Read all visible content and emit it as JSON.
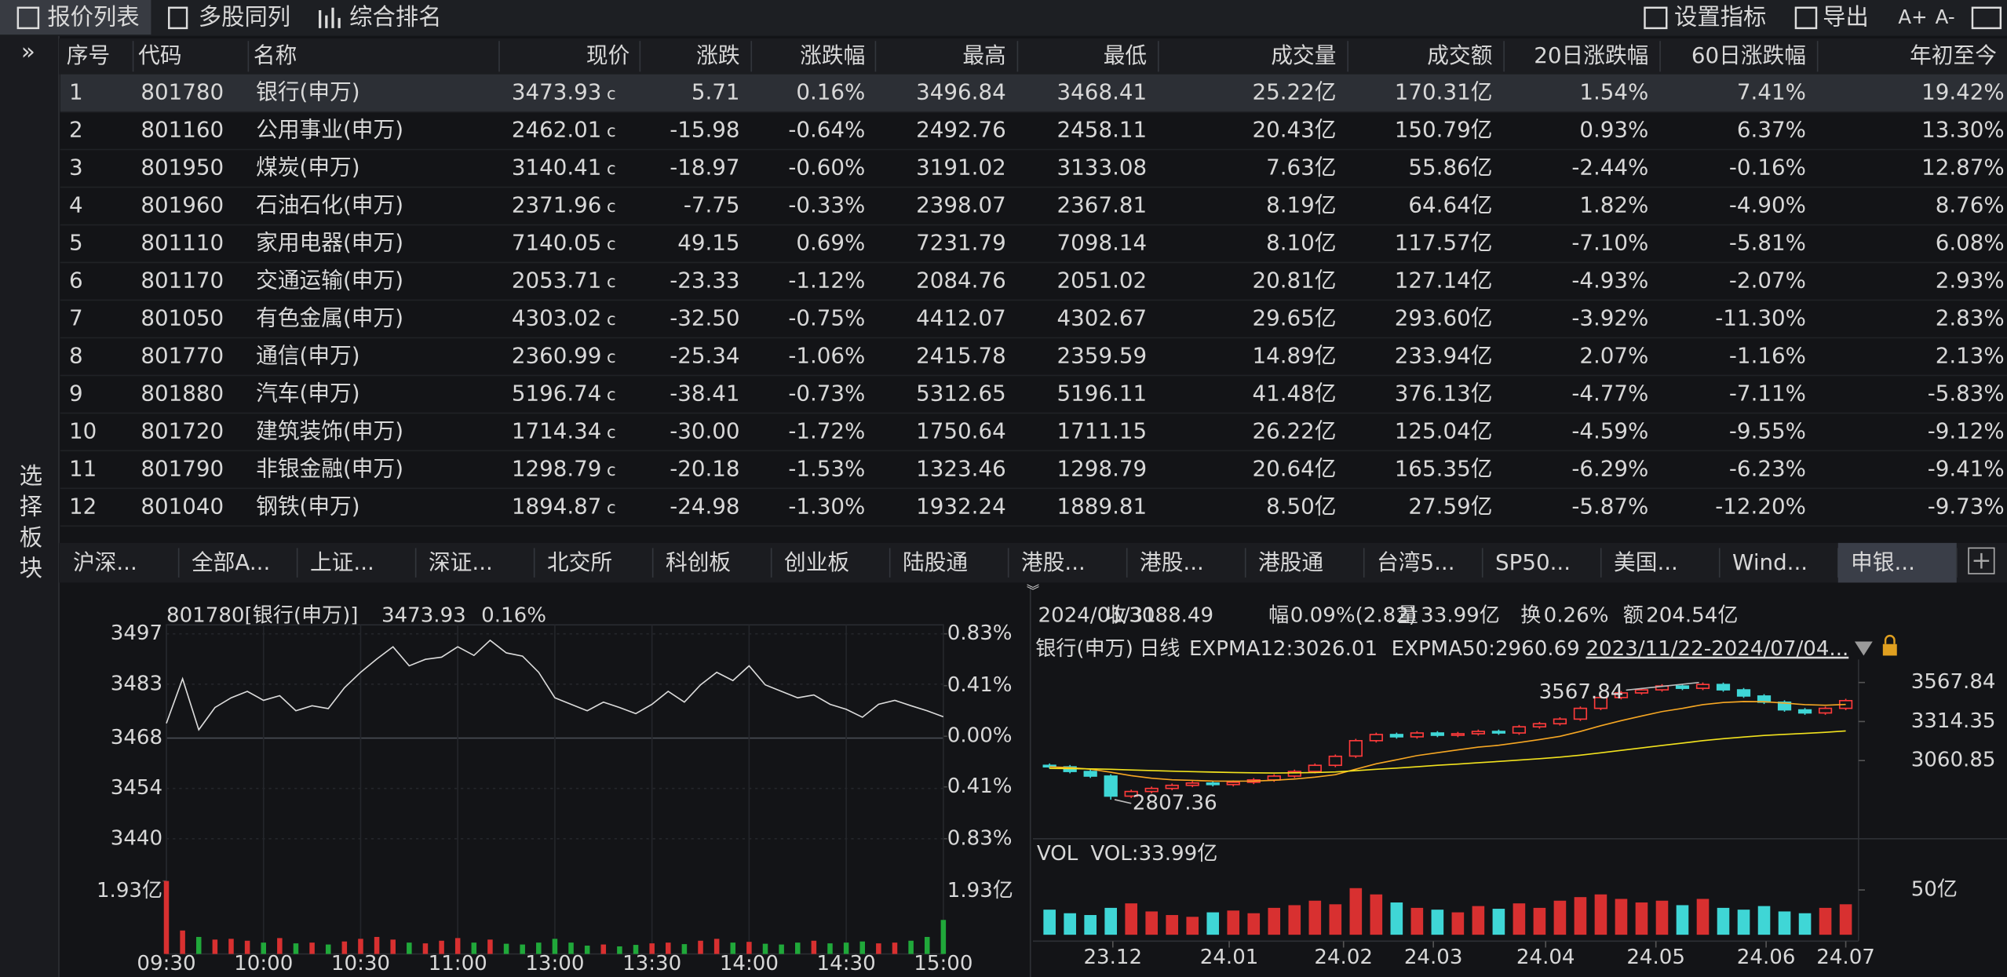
{
  "toolbar": {
    "tabs": [
      "报价列表",
      "多股同列",
      "综合排名"
    ],
    "selected": 0,
    "tools": [
      "设置指标",
      "导出",
      "A+",
      "A-"
    ]
  },
  "sidebar": {
    "toggle": "»",
    "label": "选择板块"
  },
  "table": {
    "columns": [
      "序号",
      "代码",
      "名称",
      "现价",
      "涨跌",
      "涨跌幅",
      "最高",
      "最低",
      "成交量",
      "成交额",
      "20日涨跌幅",
      "60日涨跌幅",
      "年初至今"
    ],
    "price_tag": "c",
    "selected_row": 0,
    "rows": [
      [
        "1",
        "801780",
        "银行(申万)",
        "3473.93",
        "5.71",
        "0.16%",
        "3496.84",
        "3468.41",
        "25.22亿",
        "170.31亿",
        "1.54%",
        "7.41%",
        "19.42%"
      ],
      [
        "2",
        "801160",
        "公用事业(申万)",
        "2462.01",
        "-15.98",
        "-0.64%",
        "2492.76",
        "2458.11",
        "20.43亿",
        "150.79亿",
        "0.93%",
        "6.37%",
        "13.30%"
      ],
      [
        "3",
        "801950",
        "煤炭(申万)",
        "3140.41",
        "-18.97",
        "-0.60%",
        "3191.02",
        "3133.08",
        "7.63亿",
        "55.86亿",
        "-2.44%",
        "-0.16%",
        "12.87%"
      ],
      [
        "4",
        "801960",
        "石油石化(申万)",
        "2371.96",
        "-7.75",
        "-0.33%",
        "2398.07",
        "2367.81",
        "8.19亿",
        "64.64亿",
        "1.82%",
        "-4.90%",
        "8.76%"
      ],
      [
        "5",
        "801110",
        "家用电器(申万)",
        "7140.05",
        "49.15",
        "0.69%",
        "7231.79",
        "7098.14",
        "8.10亿",
        "117.57亿",
        "-7.10%",
        "-5.81%",
        "6.08%"
      ],
      [
        "6",
        "801170",
        "交通运输(申万)",
        "2053.71",
        "-23.33",
        "-1.12%",
        "2084.76",
        "2051.02",
        "20.81亿",
        "127.14亿",
        "-4.93%",
        "-2.07%",
        "2.93%"
      ],
      [
        "7",
        "801050",
        "有色金属(申万)",
        "4303.02",
        "-32.50",
        "-0.75%",
        "4412.07",
        "4302.67",
        "29.65亿",
        "293.60亿",
        "-3.92%",
        "-11.30%",
        "2.83%"
      ],
      [
        "8",
        "801770",
        "通信(申万)",
        "2360.99",
        "-25.34",
        "-1.06%",
        "2415.78",
        "2359.59",
        "14.89亿",
        "233.94亿",
        "2.07%",
        "-1.16%",
        "2.13%"
      ],
      [
        "9",
        "801880",
        "汽车(申万)",
        "5196.74",
        "-38.41",
        "-0.73%",
        "5312.65",
        "5196.11",
        "41.48亿",
        "376.13亿",
        "-4.77%",
        "-7.11%",
        "-5.83%"
      ],
      [
        "10",
        "801720",
        "建筑装饰(申万)",
        "1714.34",
        "-30.00",
        "-1.72%",
        "1750.64",
        "1711.15",
        "26.22亿",
        "125.04亿",
        "-4.59%",
        "-9.55%",
        "-9.12%"
      ],
      [
        "11",
        "801790",
        "非银金融(申万)",
        "1298.79",
        "-20.18",
        "-1.53%",
        "1323.46",
        "1298.79",
        "20.64亿",
        "165.35亿",
        "-6.29%",
        "-6.23%",
        "-9.41%"
      ],
      [
        "12",
        "801040",
        "钢铁(申万)",
        "1894.87",
        "-24.98",
        "-1.30%",
        "1932.24",
        "1889.81",
        "8.50亿",
        "27.59亿",
        "-5.87%",
        "-12.20%",
        "-9.73%"
      ]
    ]
  },
  "market_tabs": {
    "items": [
      "沪深...",
      "全部A...",
      "上证...",
      "深证...",
      "北交所",
      "科创板",
      "创业板",
      "陆股通",
      "港股...",
      "港股...",
      "港股通",
      "台湾5...",
      "SP50...",
      "美国...",
      "Wind...",
      "申银..."
    ],
    "selected": 15
  },
  "chart_data": [
    {
      "type": "line",
      "title": "801780[银行(申万)]",
      "price_label": "3473.93",
      "change_label": "0.16%",
      "color": "#dcdcdc",
      "x": [
        "09:30",
        "09:35",
        "09:40",
        "09:45",
        "09:50",
        "09:55",
        "10:00",
        "10:05",
        "10:10",
        "10:15",
        "10:20",
        "10:25",
        "10:30",
        "10:35",
        "10:40",
        "10:45",
        "10:50",
        "10:55",
        "11:00",
        "11:05",
        "11:10",
        "11:15",
        "11:20",
        "11:25",
        "13:00",
        "13:05",
        "13:10",
        "13:15",
        "13:20",
        "13:25",
        "13:30",
        "13:35",
        "13:40",
        "13:45",
        "13:50",
        "13:55",
        "14:00",
        "14:05",
        "14:10",
        "14:15",
        "14:20",
        "14:25",
        "14:30",
        "14:35",
        "14:40",
        "14:45",
        "14:50",
        "14:55",
        "15:00"
      ],
      "values": [
        3472.1,
        3484.5,
        3470.3,
        3476.5,
        3479.2,
        3481.0,
        3478.5,
        3479.8,
        3475.6,
        3477.0,
        3476.2,
        3482.0,
        3486.3,
        3490.0,
        3493.4,
        3488.1,
        3489.9,
        3490.5,
        3493.4,
        3491.0,
        3495.2,
        3491.7,
        3490.8,
        3486.3,
        3479.2,
        3477.4,
        3475.6,
        3478.0,
        3476.5,
        3474.8,
        3477.4,
        3481.0,
        3478.0,
        3482.8,
        3486.3,
        3484.0,
        3488.1,
        3482.8,
        3481.0,
        3479.2,
        3480.0,
        3477.4,
        3476.0,
        3473.8,
        3477.4,
        3478.5,
        3477.0,
        3475.6,
        3473.93
      ],
      "xticks": [
        "09:30",
        "10:00",
        "10:30",
        "11:00",
        "13:00",
        "13:30",
        "14:00",
        "14:30",
        "15:00"
      ],
      "ylim": [
        3440,
        3497
      ],
      "yticks": [
        3497,
        3483,
        3468,
        3454,
        3440
      ],
      "y2lim": [
        -0.83,
        0.83
      ],
      "y2ticks": [
        {
          "value": 0.83,
          "label": "0.83%"
        },
        {
          "value": 0.41,
          "label": "0.41%"
        },
        {
          "value": 0,
          "label": "0.00%"
        },
        {
          "value": -0.41,
          "label": "0.41%"
        },
        {
          "value": -0.83,
          "label": "0.83%"
        }
      ],
      "volume": {
        "values": [
          1.93,
          0.62,
          0.45,
          0.38,
          0.4,
          0.35,
          0.3,
          0.42,
          0.28,
          0.3,
          0.25,
          0.33,
          0.4,
          0.45,
          0.38,
          0.3,
          0.28,
          0.35,
          0.42,
          0.3,
          0.38,
          0.27,
          0.25,
          0.3,
          0.4,
          0.3,
          0.22,
          0.25,
          0.2,
          0.24,
          0.28,
          0.3,
          0.26,
          0.35,
          0.4,
          0.3,
          0.32,
          0.27,
          0.25,
          0.3,
          0.35,
          0.28,
          0.3,
          0.33,
          0.28,
          0.3,
          0.35,
          0.45,
          0.9
        ],
        "ylim": [
          0,
          1.93
        ],
        "yticks": [
          {
            "value": 1.93,
            "label": "1.93亿"
          }
        ]
      }
    },
    {
      "type": "candlestick",
      "title": "银行(申万)",
      "period": "日线",
      "date": "2024/01/31",
      "info": [
        {
          "label": "收",
          "value": "3088.49"
        },
        {
          "label": "幅",
          "value": "0.09%(2.82)"
        },
        {
          "label": "量",
          "value": "33.99亿"
        },
        {
          "label": "换",
          "value": "0.26%"
        },
        {
          "label": "额",
          "value": "204.54亿"
        }
      ],
      "range": "2023/11/22-2024/07/04...",
      "open": [
        3030,
        3020,
        2990,
        2960,
        2830,
        2860,
        2880,
        2900,
        2915,
        2905,
        2920,
        2935,
        2960,
        2990,
        3030,
        3090,
        3190,
        3230,
        3215,
        3240,
        3225,
        3235,
        3250,
        3240,
        3280,
        3300,
        3330,
        3400,
        3470,
        3500,
        3520,
        3545,
        3530,
        3555,
        3520,
        3480,
        3440,
        3390,
        3370,
        3400
      ],
      "high": [
        3042,
        3032,
        3002,
        2972,
        2872,
        2892,
        2912,
        2927,
        2927,
        2932,
        2947,
        2972,
        3002,
        3042,
        3100,
        3202,
        3242,
        3242,
        3252,
        3252,
        3247,
        3262,
        3262,
        3292,
        3312,
        3342,
        3412,
        3482,
        3512,
        3532,
        3557,
        3557,
        3567.84,
        3567,
        3532,
        3492,
        3452,
        3402,
        3412,
        3462
      ],
      "low": [
        3008,
        2978,
        2948,
        2807.36,
        2818,
        2848,
        2868,
        2888,
        2893,
        2893,
        2908,
        2923,
        2948,
        2978,
        3018,
        3078,
        3178,
        3203,
        3203,
        3213,
        3213,
        3223,
        3228,
        3228,
        3268,
        3288,
        3318,
        3388,
        3458,
        3488,
        3508,
        3518,
        3518,
        3508,
        3468,
        3428,
        3378,
        3358,
        3358,
        3388
      ],
      "close": [
        3020,
        2990,
        2960,
        2830,
        2860,
        2880,
        2900,
        2915,
        2905,
        2920,
        2935,
        2960,
        2990,
        3030,
        3088.49,
        3190,
        3230,
        3215,
        3240,
        3225,
        3235,
        3250,
        3240,
        3280,
        3300,
        3330,
        3400,
        3470,
        3500,
        3520,
        3545,
        3530,
        3555,
        3520,
        3480,
        3440,
        3390,
        3370,
        3400,
        3450
      ],
      "series": [
        {
          "name": "EXPMA12:3026.01",
          "color": "#f5a623",
          "values": [
            3020,
            3015,
            3005,
            2985,
            2963,
            2946,
            2936,
            2932,
            2928,
            2927,
            2928,
            2933,
            2941,
            2953,
            2969,
            3005,
            3040,
            3066,
            3093,
            3112,
            3130,
            3148,
            3160,
            3178,
            3197,
            3218,
            3250,
            3287,
            3320,
            3350,
            3379,
            3400,
            3424,
            3438,
            3444,
            3443,
            3434,
            3424,
            3420,
            3425
          ]
        },
        {
          "name": "EXPMA50:2960.69",
          "color": "#f2e21e",
          "values": [
            3010,
            3009,
            3007,
            3004,
            3000,
            2996,
            2992,
            2989,
            2986,
            2983,
            2981,
            2980,
            2981,
            2983,
            2987,
            2995,
            3004,
            3012,
            3021,
            3030,
            3038,
            3047,
            3055,
            3064,
            3073,
            3083,
            3096,
            3111,
            3127,
            3143,
            3159,
            3174,
            3190,
            3203,
            3214,
            3224,
            3231,
            3237,
            3244,
            3253
          ]
        }
      ],
      "max_label": 3567.84,
      "min_label": 2807.36,
      "xlim": [
        -0.5,
        39.5
      ],
      "xticks": [
        {
          "value": 3.1,
          "label": "23.12"
        },
        {
          "value": 8.8,
          "label": "24.01"
        },
        {
          "value": 14.4,
          "label": "24.02"
        },
        {
          "value": 18.8,
          "label": "24.03"
        },
        {
          "value": 24.3,
          "label": "24.04"
        },
        {
          "value": 29.7,
          "label": "24.05"
        },
        {
          "value": 35.1,
          "label": "24.06"
        },
        {
          "value": 39.0,
          "label": "24.07"
        }
      ],
      "ylim": [
        2600,
        3680
      ],
      "yticks": [
        3567.84,
        3314.35,
        3060.85
      ],
      "volume": {
        "title": "VOL",
        "label": "VOL:33.99亿",
        "values": [
          28,
          24,
          22,
          30,
          35,
          26,
          22,
          20,
          25,
          27,
          24,
          30,
          33,
          38,
          33.99,
          52,
          45,
          36,
          30,
          28,
          25,
          32,
          29,
          35,
          30,
          38,
          42,
          45,
          40,
          36,
          38,
          33,
          40,
          30,
          28,
          32,
          26,
          24,
          30,
          34
        ],
        "ylim": [
          0,
          70
        ],
        "yticks": [
          {
            "value": 50,
            "label": "50亿"
          }
        ]
      }
    }
  ]
}
